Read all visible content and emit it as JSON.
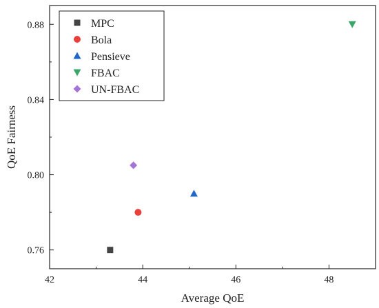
{
  "chart_data": {
    "type": "scatter",
    "xlabel": "Average QoE",
    "ylabel": "QoE Fairness",
    "xlim": [
      42,
      49
    ],
    "ylim": [
      0.75,
      0.89
    ],
    "xticks": [
      42,
      44,
      46,
      48
    ],
    "yticks": [
      0.76,
      0.8,
      0.84,
      0.88
    ],
    "xtick_labels": [
      "42",
      "44",
      "46",
      "48"
    ],
    "ytick_labels": [
      "0.76",
      "0.80",
      "0.84",
      "0.88"
    ],
    "grid": false,
    "legend_position": "top-left",
    "series": [
      {
        "name": "MPC",
        "marker": "square",
        "color": "#444444",
        "x": 43.3,
        "y": 0.76
      },
      {
        "name": "Bola",
        "marker": "circle",
        "color": "#e8413c",
        "x": 43.9,
        "y": 0.78
      },
      {
        "name": "Pensieve",
        "marker": "triangle-up",
        "color": "#2166c9",
        "x": 45.1,
        "y": 0.79
      },
      {
        "name": "FBAC",
        "marker": "triangle-down",
        "color": "#3aa66a",
        "x": 48.5,
        "y": 0.88
      },
      {
        "name": "UN-FBAC",
        "marker": "diamond",
        "color": "#a474d8",
        "x": 43.8,
        "y": 0.805
      }
    ]
  }
}
